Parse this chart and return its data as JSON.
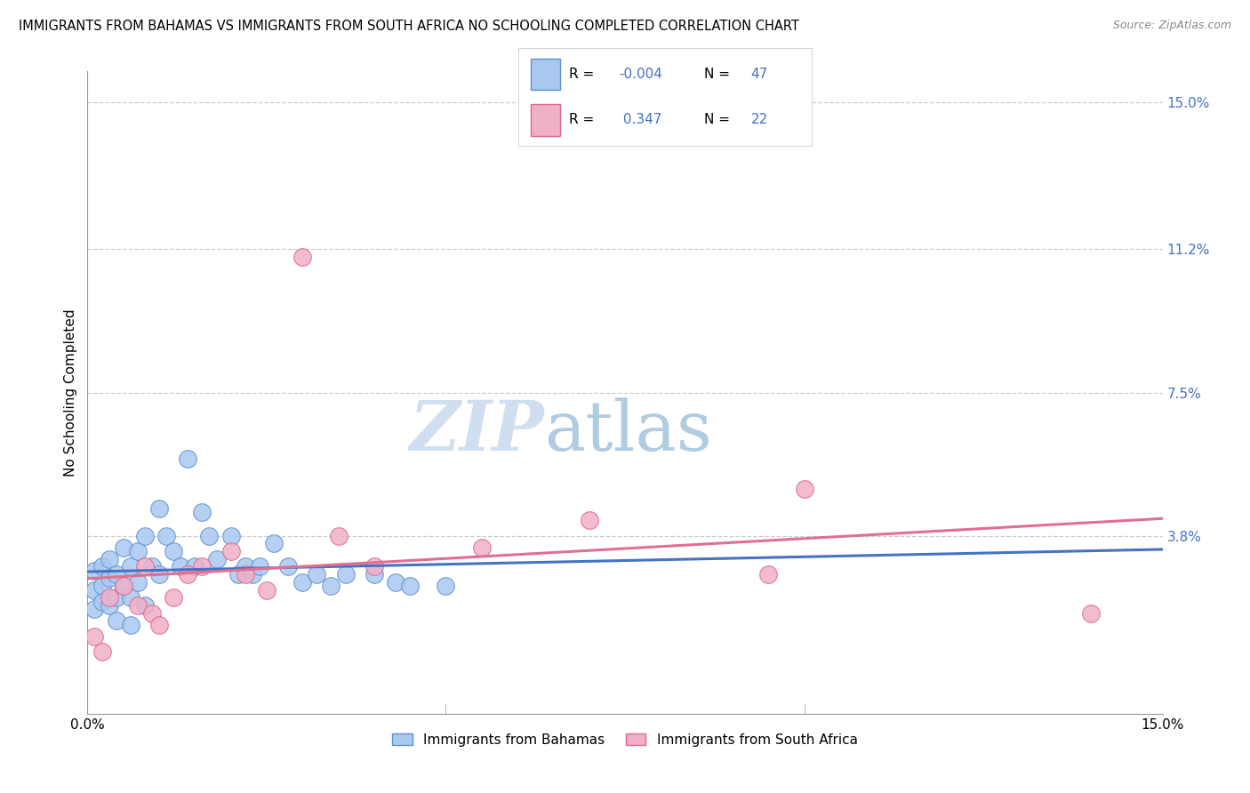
{
  "title": "IMMIGRANTS FROM BAHAMAS VS IMMIGRANTS FROM SOUTH AFRICA NO SCHOOLING COMPLETED CORRELATION CHART",
  "source": "Source: ZipAtlas.com",
  "ylabel": "No Schooling Completed",
  "right_yticklabels": [
    "3.8%",
    "7.5%",
    "11.2%",
    "15.0%"
  ],
  "right_ytick_vals": [
    0.038,
    0.075,
    0.112,
    0.15
  ],
  "xmin": 0.0,
  "xmax": 0.15,
  "ymin": -0.008,
  "ymax": 0.158,
  "color_bahamas": "#a8c8f0",
  "color_south_africa": "#f0b0c8",
  "color_bahamas_edge": "#6090d0",
  "color_south_africa_edge": "#e06888",
  "color_bahamas_line": "#4472c4",
  "color_south_africa_line": "#e07090",
  "color_blue_text": "#4472c4",
  "color_grid": "#c0c0c0",
  "watermark_color_zip": "#d0dff0",
  "watermark_color_atlas": "#b0cce0",
  "legend_label_bahamas": "Immigrants from Bahamas",
  "legend_label_south_africa": "Immigrants from South Africa",
  "bahamas_x": [
    0.001,
    0.001,
    0.001,
    0.002,
    0.002,
    0.002,
    0.003,
    0.003,
    0.003,
    0.004,
    0.004,
    0.004,
    0.005,
    0.005,
    0.006,
    0.006,
    0.006,
    0.007,
    0.007,
    0.008,
    0.008,
    0.009,
    0.01,
    0.01,
    0.011,
    0.012,
    0.013,
    0.014,
    0.015,
    0.016,
    0.017,
    0.018,
    0.02,
    0.021,
    0.022,
    0.023,
    0.024,
    0.026,
    0.028,
    0.03,
    0.032,
    0.034,
    0.036,
    0.04,
    0.043,
    0.045,
    0.05
  ],
  "bahamas_y": [
    0.029,
    0.024,
    0.019,
    0.03,
    0.025,
    0.021,
    0.032,
    0.027,
    0.02,
    0.028,
    0.022,
    0.016,
    0.035,
    0.025,
    0.03,
    0.022,
    0.015,
    0.034,
    0.026,
    0.038,
    0.02,
    0.03,
    0.045,
    0.028,
    0.038,
    0.034,
    0.03,
    0.058,
    0.03,
    0.044,
    0.038,
    0.032,
    0.038,
    0.028,
    0.03,
    0.028,
    0.03,
    0.036,
    0.03,
    0.026,
    0.028,
    0.025,
    0.028,
    0.028,
    0.026,
    0.025,
    0.025
  ],
  "south_africa_x": [
    0.001,
    0.002,
    0.003,
    0.005,
    0.007,
    0.008,
    0.009,
    0.01,
    0.012,
    0.014,
    0.016,
    0.02,
    0.022,
    0.025,
    0.03,
    0.035,
    0.04,
    0.055,
    0.07,
    0.095,
    0.1,
    0.14
  ],
  "south_africa_y": [
    0.012,
    0.008,
    0.022,
    0.025,
    0.02,
    0.03,
    0.018,
    0.015,
    0.022,
    0.028,
    0.03,
    0.034,
    0.028,
    0.024,
    0.11,
    0.038,
    0.03,
    0.035,
    0.042,
    0.028,
    0.05,
    0.018
  ]
}
